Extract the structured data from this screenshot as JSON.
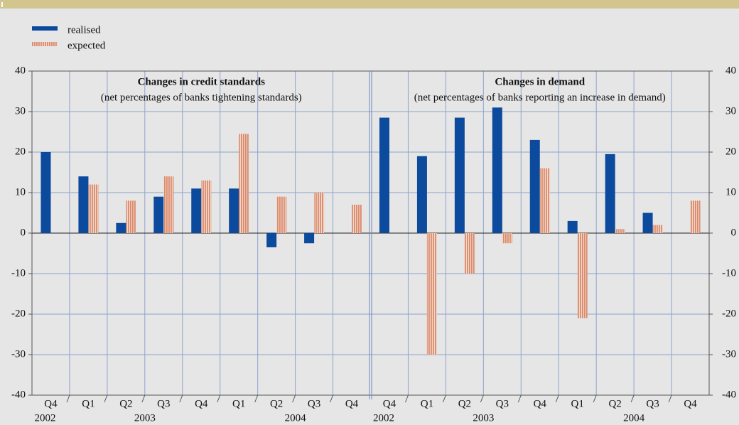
{
  "chart_data": [
    {
      "type": "bar",
      "title": "Changes in credit standards",
      "subtitle": "(net percentages of banks tightening standards)",
      "categories": [
        "Q4",
        "Q1",
        "Q2",
        "Q3",
        "Q4",
        "Q1",
        "Q2",
        "Q3",
        "Q4"
      ],
      "years": [
        "2002",
        "2003",
        null,
        null,
        null,
        "2004",
        null,
        null,
        null
      ],
      "series": [
        {
          "name": "realised",
          "color": "#0b4a9c",
          "style": "solid",
          "values": [
            20,
            14,
            2.5,
            9,
            11,
            11,
            -3.5,
            -2.5,
            null
          ]
        },
        {
          "name": "expected",
          "color": "#d98b6e",
          "style": "striped",
          "values": [
            null,
            12,
            8,
            14,
            13,
            24.5,
            9,
            10,
            7
          ]
        }
      ],
      "ylim": [
        -40,
        40
      ],
      "yticks": [
        -40,
        -30,
        -20,
        -10,
        0,
        10,
        20,
        30,
        40
      ],
      "grid": true
    },
    {
      "type": "bar",
      "title": "Changes in demand",
      "subtitle": "(net percentages of banks reporting an increase in demand)",
      "categories": [
        "Q4",
        "Q1",
        "Q2",
        "Q3",
        "Q4",
        "Q1",
        "Q2",
        "Q3",
        "Q4"
      ],
      "years": [
        "2002",
        "2003",
        null,
        null,
        null,
        "2004",
        null,
        null,
        null
      ],
      "series": [
        {
          "name": "realised",
          "color": "#0b4a9c",
          "style": "solid",
          "values": [
            28.5,
            19,
            28.5,
            31,
            23,
            3,
            19.5,
            5,
            null
          ]
        },
        {
          "name": "expected",
          "color": "#d98b6e",
          "style": "striped",
          "values": [
            null,
            -30,
            -10,
            -2.5,
            16,
            -21,
            1,
            2,
            8
          ]
        }
      ],
      "ylim": [
        -40,
        40
      ],
      "yticks": [
        -40,
        -30,
        -20,
        -10,
        0,
        10,
        20,
        30,
        40
      ],
      "grid": true
    }
  ]
}
